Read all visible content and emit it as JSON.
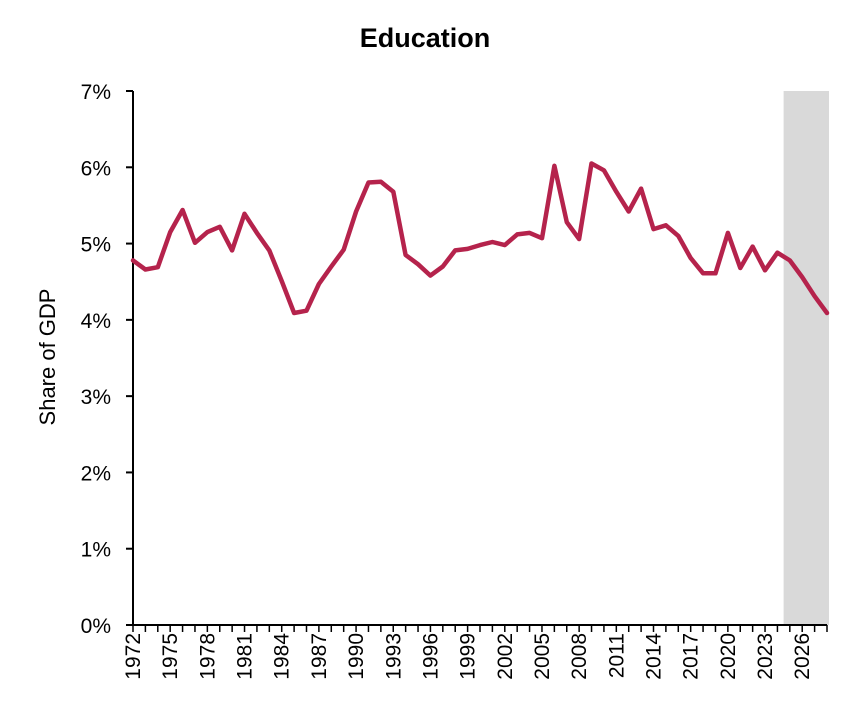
{
  "chart_data": {
    "type": "line",
    "title": "Education",
    "xlabel": "",
    "ylabel": "Share of GDP",
    "ylim": [
      0,
      7
    ],
    "xlim": [
      1972,
      2028
    ],
    "yticks": [
      "0%",
      "1%",
      "2%",
      "3%",
      "4%",
      "5%",
      "6%",
      "7%"
    ],
    "xticks": [
      "1972",
      "1975",
      "1978",
      "1981",
      "1984",
      "1987",
      "1990",
      "1993",
      "1996",
      "1999",
      "2002",
      "2005",
      "2008",
      "2011",
      "2014",
      "2017",
      "2020",
      "2023",
      "2026"
    ],
    "grid": false,
    "projection_shading": {
      "from": 2024.5,
      "to": 2028.5,
      "color": "#d9d9d9"
    },
    "line_color": "#b5234c",
    "series": [
      {
        "x": [
          1972,
          1973,
          1974,
          1975,
          1976,
          1977,
          1978,
          1979,
          1980,
          1981,
          1982,
          1983,
          1984,
          1985,
          1986,
          1987,
          1988,
          1989,
          1990,
          1991,
          1992,
          1993,
          1994,
          1995,
          1996,
          1997,
          1998,
          1999,
          2000,
          2001,
          2002,
          2003,
          2004,
          2005,
          2006,
          2007,
          2008,
          2009,
          2010,
          2011,
          2012,
          2013,
          2014,
          2015,
          2016,
          2017,
          2018,
          2019,
          2020,
          2021,
          2022,
          2023,
          2024,
          2025,
          2026,
          2027,
          2028
        ],
        "values": [
          4.78,
          4.66,
          4.69,
          5.15,
          5.44,
          5.01,
          5.15,
          5.22,
          4.91,
          5.39,
          5.14,
          4.91,
          4.51,
          4.09,
          4.12,
          4.47,
          4.7,
          4.92,
          5.42,
          5.8,
          5.81,
          5.68,
          4.85,
          4.73,
          4.58,
          4.7,
          4.91,
          4.93,
          4.98,
          5.02,
          4.98,
          5.12,
          5.14,
          5.07,
          6.02,
          5.28,
          5.06,
          6.05,
          5.96,
          5.68,
          5.42,
          5.72,
          5.19,
          5.24,
          5.1,
          4.81,
          4.61,
          4.61,
          5.14,
          4.68,
          4.96,
          4.65,
          4.88,
          4.78,
          4.56,
          4.31,
          4.09
        ]
      }
    ]
  }
}
